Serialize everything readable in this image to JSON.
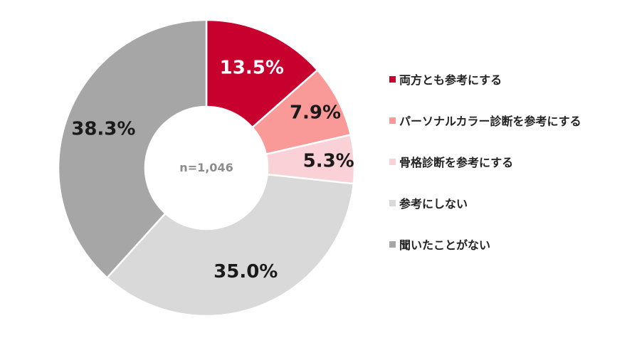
{
  "chart_data": {
    "type": "pie",
    "subtype": "donut",
    "sample_size_label": "n=1,046",
    "categories": [
      "両方とも参考にする",
      "パーソナルカラー診断を参考にする",
      "骨格診断を参考にする",
      "参考にしない",
      "聞いたことがない"
    ],
    "values": [
      13.5,
      7.9,
      5.3,
      35.0,
      38.3
    ],
    "value_labels": [
      "13.5%",
      "7.9%",
      "5.3%",
      "35.0%",
      "38.3%"
    ],
    "colors": [
      "#c8002d",
      "#f99a98",
      "#fbd1d8",
      "#d9d9d9",
      "#a6a6a6"
    ],
    "label_colors": [
      "#ffffff",
      "#1a1a1a",
      "#1a1a1a",
      "#1a1a1a",
      "#1a1a1a"
    ],
    "legend_position": "right",
    "start_angle": "12 o'clock",
    "direction": "clockwise"
  }
}
